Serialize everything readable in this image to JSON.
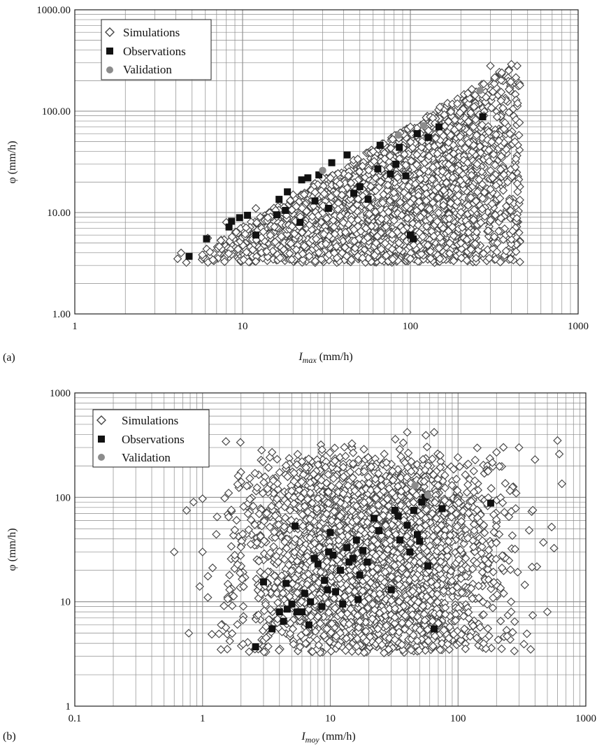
{
  "colors": {
    "grid": "#8a8a8a",
    "frame": "#222222",
    "simulations_edge": "#444444",
    "observations": "#111111",
    "validation": "#8c8c8c"
  },
  "chart_data": [
    {
      "type": "scatter",
      "panel_label": "(a)",
      "xscale": "log",
      "yscale": "log",
      "xlim": [
        1,
        1000
      ],
      "ylim": [
        1,
        1000
      ],
      "xticks": [
        "1",
        "10",
        "100",
        "1000"
      ],
      "yticks": [
        "1.00",
        "10.00",
        "100.00",
        "1000.00"
      ],
      "xlabel": {
        "main": "I",
        "sub": "max",
        "unit": " (mm/h)"
      },
      "ylabel": "φ (mm/h)",
      "grid": true,
      "legend_position": "top-left",
      "series": [
        {
          "name": "Simulations",
          "marker": "diamond-open",
          "region": {
            "xmin": 4,
            "xmax": 450,
            "ymin": 3.2,
            "ymax": 300,
            "upper_bound": "y <= 0.72*x",
            "count": 2600
          },
          "points": [
            [
              4.1,
              3.5
            ],
            [
              4.3,
              4.0
            ],
            [
              6.2,
              5.6
            ],
            [
              8.0,
              8.0
            ],
            [
              12,
              11
            ],
            [
              20,
              15
            ],
            [
              30,
              22
            ],
            [
              60,
              40
            ],
            [
              100,
              70
            ],
            [
              150,
              110
            ],
            [
              220,
              150
            ],
            [
              300,
              280
            ],
            [
              400,
              290
            ],
            [
              450,
              180
            ],
            [
              420,
              50
            ],
            [
              380,
              20
            ],
            [
              330,
              5
            ],
            [
              300,
              17
            ],
            [
              250,
              30
            ],
            [
              200,
              5
            ],
            [
              150,
              3.5
            ],
            [
              100,
              3.5
            ]
          ]
        },
        {
          "name": "Observations",
          "marker": "square-filled",
          "points": [
            [
              4.8,
              3.7
            ],
            [
              6.1,
              5.5
            ],
            [
              8.3,
              7.2
            ],
            [
              8.6,
              8.2
            ],
            [
              9.6,
              8.9
            ],
            [
              10.7,
              9.4
            ],
            [
              12.0,
              6.0
            ],
            [
              16.0,
              9.5
            ],
            [
              16.5,
              13.5
            ],
            [
              18.5,
              16.0
            ],
            [
              18.0,
              10.5
            ],
            [
              22.0,
              8.0
            ],
            [
              22.5,
              21.0
            ],
            [
              24.5,
              22.0
            ],
            [
              27.0,
              13.0
            ],
            [
              28.5,
              23.5
            ],
            [
              32.5,
              11.0
            ],
            [
              34.0,
              31.0
            ],
            [
              42.0,
              37.0
            ],
            [
              46.0,
              15.5
            ],
            [
              50.0,
              18.0
            ],
            [
              56.0,
              13.5
            ],
            [
              64.0,
              27.0
            ],
            [
              66.0,
              46.0
            ],
            [
              76.0,
              24.0
            ],
            [
              82.0,
              30.0
            ],
            [
              86.0,
              44.0
            ],
            [
              94.0,
              23.0
            ],
            [
              100.0,
              6.0
            ],
            [
              104.0,
              5.5
            ],
            [
              110.0,
              60.0
            ],
            [
              128.0,
              55.0
            ],
            [
              148.0,
              70.0
            ],
            [
              270.0,
              88.0
            ]
          ]
        },
        {
          "name": "Validation",
          "marker": "circle-filled",
          "points": [
            [
              30.0,
              26.0
            ],
            [
              85.0,
              58.0
            ],
            [
              120.0,
              72.0
            ],
            [
              260.0,
              160.0
            ]
          ]
        }
      ]
    },
    {
      "type": "scatter",
      "panel_label": "(b)",
      "xscale": "log",
      "yscale": "log",
      "xlim": [
        0.1,
        1000
      ],
      "ylim": [
        1,
        1000
      ],
      "xticks": [
        "0.1",
        "1",
        "10",
        "100",
        "1000"
      ],
      "yticks": [
        "1",
        "10",
        "100",
        "1000"
      ],
      "xlabel": {
        "main": "I",
        "sub": "moy",
        "unit": " (mm/h)"
      },
      "ylabel": "φ (mm/h)",
      "grid": true,
      "legend_position": "top-left",
      "series": [
        {
          "name": "Simulations",
          "marker": "diamond-open",
          "region": {
            "xmin": 0.6,
            "xmax": 650,
            "ymin": 3.2,
            "ymax": 420,
            "count": 3000
          },
          "points": [
            [
              0.6,
              30
            ],
            [
              0.75,
              75
            ],
            [
              0.78,
              5
            ],
            [
              0.85,
              90
            ],
            [
              0.95,
              14
            ],
            [
              1.0,
              97
            ],
            [
              1.0,
              30
            ],
            [
              1.1,
              11
            ],
            [
              1.3,
              65
            ],
            [
              1.4,
              6
            ],
            [
              1.6,
              110
            ],
            [
              1.9,
              160
            ],
            [
              3.5,
              270
            ],
            [
              6,
              220
            ],
            [
              40,
              420
            ],
            [
              65,
              420
            ],
            [
              200,
              270
            ],
            [
              300,
              300
            ],
            [
              400,
              230
            ],
            [
              600,
              350
            ],
            [
              620,
              260
            ],
            [
              650,
              135
            ],
            [
              540,
              52
            ],
            [
              500,
              8
            ],
            [
              370,
              3.5
            ],
            [
              260,
              10
            ],
            [
              140,
              4.5
            ]
          ]
        },
        {
          "name": "Observations",
          "marker": "square-filled",
          "points": [
            [
              2.6,
              3.7
            ],
            [
              3.0,
              15.5
            ],
            [
              3.5,
              5.5
            ],
            [
              4.0,
              8.0
            ],
            [
              4.3,
              6.5
            ],
            [
              4.5,
              15.0
            ],
            [
              4.6,
              8.5
            ],
            [
              5.0,
              9.5
            ],
            [
              5.3,
              53.0
            ],
            [
              5.5,
              8.0
            ],
            [
              6.0,
              8.0
            ],
            [
              6.3,
              12.0
            ],
            [
              6.8,
              6.0
            ],
            [
              7.0,
              10.0
            ],
            [
              7.5,
              26.0
            ],
            [
              8.0,
              23.0
            ],
            [
              8.6,
              9.0
            ],
            [
              9.0,
              16.0
            ],
            [
              9.5,
              13.0
            ],
            [
              9.7,
              30.0
            ],
            [
              10.0,
              46.0
            ],
            [
              10.5,
              28.0
            ],
            [
              11.0,
              12.5
            ],
            [
              12.0,
              20.0
            ],
            [
              12.5,
              9.5
            ],
            [
              13.5,
              33.0
            ],
            [
              14.0,
              24.0
            ],
            [
              15.0,
              26.0
            ],
            [
              16.0,
              39.0
            ],
            [
              16.5,
              10.5
            ],
            [
              17.0,
              18.0
            ],
            [
              18.0,
              31.0
            ],
            [
              19.5,
              24.0
            ],
            [
              22.0,
              63.0
            ],
            [
              24.0,
              48.0
            ],
            [
              30.0,
              13.0
            ],
            [
              32.0,
              75.0
            ],
            [
              34.0,
              66.0
            ],
            [
              35.0,
              39.0
            ],
            [
              40.0,
              54.0
            ],
            [
              42.0,
              30.0
            ],
            [
              45.0,
              75.0
            ],
            [
              48.0,
              44.0
            ],
            [
              50.0,
              38.0
            ],
            [
              52.0,
              90.0
            ],
            [
              55.0,
              100.0
            ],
            [
              58.0,
              22.0
            ],
            [
              65.0,
              5.5
            ],
            [
              75.0,
              78.0
            ],
            [
              180.0,
              88.0
            ]
          ]
        },
        {
          "name": "Validation",
          "marker": "circle-filled",
          "points": [
            [
              46.0,
              130.0
            ],
            [
              58.0,
              105.0
            ]
          ]
        }
      ]
    }
  ]
}
